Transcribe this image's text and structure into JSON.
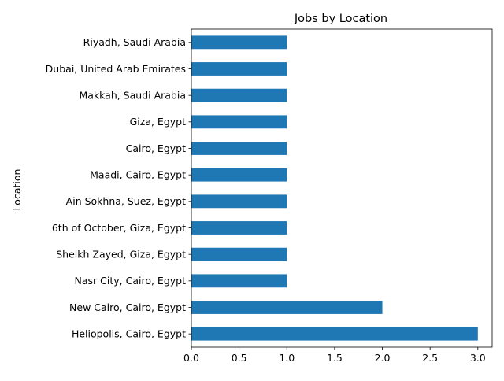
{
  "chart_data": {
    "type": "bar",
    "orientation": "horizontal",
    "title": "Jobs by Location",
    "xlabel": "",
    "ylabel": "Location",
    "categories": [
      "Heliopolis, Cairo, Egypt",
      "New Cairo, Cairo, Egypt",
      "Nasr City, Cairo, Egypt",
      "Sheikh Zayed, Giza, Egypt",
      "6th of October, Giza, Egypt",
      "Ain Sokhna, Suez, Egypt",
      "Maadi, Cairo, Egypt",
      "Cairo, Egypt",
      "Giza, Egypt",
      "Makkah, Saudi Arabia",
      "Dubai, United Arab Emirates",
      "Riyadh, Saudi Arabia"
    ],
    "values": [
      3,
      2,
      1,
      1,
      1,
      1,
      1,
      1,
      1,
      1,
      1,
      1
    ],
    "xlim": [
      0,
      3.15
    ],
    "xticks": [
      0,
      0.5,
      1,
      1.5,
      2,
      2.5,
      3
    ],
    "xtick_labels": [
      "0.0",
      "0.5",
      "1.0",
      "1.5",
      "2.0",
      "2.5",
      "3.0"
    ],
    "grid": false,
    "legend": "none",
    "bar_color": "#1f77b4"
  }
}
